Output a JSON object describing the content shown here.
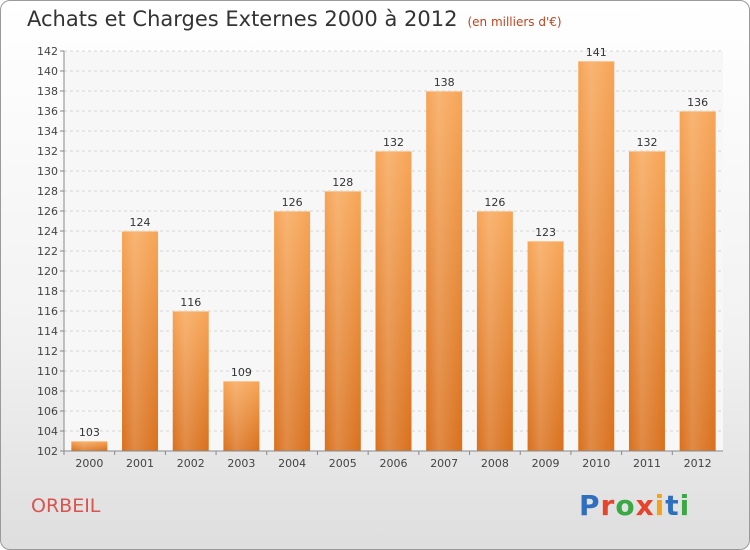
{
  "chart_data": {
    "type": "bar",
    "title": "Achats et Charges Externes 2000 à 2012",
    "subtitle": "(en milliers d'€)",
    "categories": [
      "2000",
      "2001",
      "2002",
      "2003",
      "2004",
      "2005",
      "2006",
      "2007",
      "2008",
      "2009",
      "2010",
      "2011",
      "2012"
    ],
    "values": [
      103,
      124,
      116,
      109,
      126,
      128,
      132,
      138,
      126,
      123,
      141,
      132,
      136
    ],
    "ylim": [
      102,
      142
    ],
    "yticks": [
      102,
      104,
      106,
      108,
      110,
      112,
      114,
      116,
      118,
      120,
      122,
      124,
      126,
      128,
      130,
      132,
      134,
      136,
      138,
      140,
      142
    ],
    "grid": true,
    "bar_color": "#f0903a"
  },
  "commune": "ORBEIL",
  "logo": {
    "letters": [
      "P",
      "r",
      "o",
      "x",
      "i",
      "t",
      "i"
    ],
    "colors": [
      "#2f6fc0",
      "#e8432b",
      "#3aa845",
      "#e8432b",
      "#f2a21b",
      "#2f6fc0",
      "#3aa845"
    ]
  }
}
